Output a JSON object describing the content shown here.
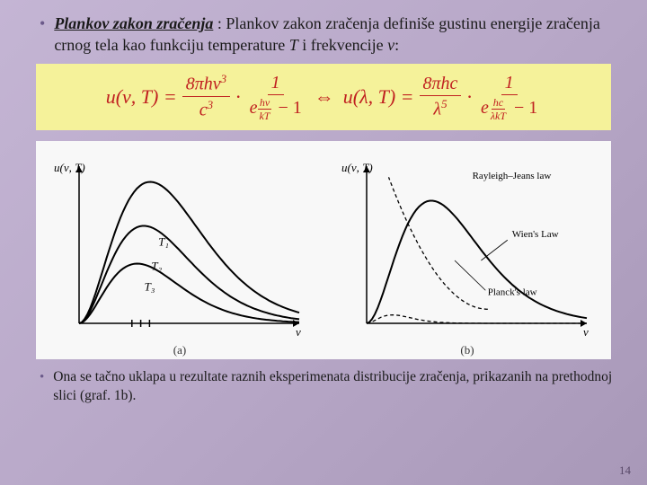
{
  "intro": {
    "title": "Plankov zakon zračenja",
    "body": " : Plankov zakon zračenja definiše gustinu energije zračenja crnog tela kao funkciju temperature ",
    "T": "T",
    "and": " i frekvencije ",
    "nu": "ν",
    "colon": ":"
  },
  "formula": {
    "lhs1": "u(ν, T) =",
    "f1_num": "8πhν",
    "f1_num_exp": "3",
    "f1_den": "c",
    "f1_den_exp": "3",
    "dot": "·",
    "f2_num": "1",
    "e": "e",
    "exp1_num": "hν",
    "exp1_den": "kT",
    "minus1": "− 1",
    "iff": "⇔",
    "lhs2": "u(λ, T) =",
    "f3_num": "8πhc",
    "f3_den": "λ",
    "f3_den_exp": "5",
    "exp2_num": "hc",
    "exp2_den": "λkT"
  },
  "charts": {
    "a": {
      "ylabel": "u(ν, T)",
      "xlabel": "ν",
      "label": "(a)",
      "curves": [
        {
          "label": "T₁",
          "peak_x": 0.28,
          "peak_y": 0.9,
          "width": 2.2
        },
        {
          "label": "T₂",
          "peak_x": 0.24,
          "peak_y": 0.62,
          "width": 2.0
        },
        {
          "label": "T₃",
          "peak_x": 0.2,
          "peak_y": 0.38,
          "width": 1.8
        }
      ],
      "axis_color": "#000000",
      "curve_color": "#000000",
      "bg": "#f8f8f8"
    },
    "b": {
      "ylabel": "u(ν, T)",
      "xlabel": "ν",
      "label": "(b)",
      "rayleigh": "Rayleigh–Jeans law",
      "wien": "Wien's Law",
      "planck": "Planck's law",
      "axis_color": "#000000",
      "curve_color": "#000000"
    }
  },
  "outro": {
    "text": "Ona se tačno uklapa u rezultate raznih eksperimenata distribucije zračenja, prikazanih na prethodnoj slici (graf. 1b)."
  },
  "page": "14"
}
